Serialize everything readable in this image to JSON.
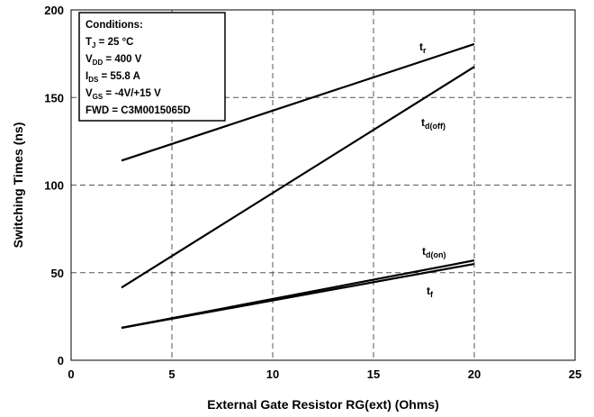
{
  "chart_data": {
    "type": "line",
    "xlabel": "External Gate Resistor RG(ext) (Ohms)",
    "ylabel": "Switching Times (ns)",
    "xlim": [
      0,
      25
    ],
    "ylim": [
      0,
      200
    ],
    "xticks": [
      0,
      5,
      10,
      15,
      20,
      25
    ],
    "yticks": [
      0,
      50,
      100,
      150,
      200
    ],
    "grid": true,
    "series": [
      {
        "name": "tr",
        "label_main": "t",
        "label_sub": "r",
        "x": [
          2.5,
          20
        ],
        "y": [
          114,
          180.5
        ]
      },
      {
        "name": "td(off)",
        "label_main": "t",
        "label_sub": "d(off)",
        "x": [
          2.5,
          20
        ],
        "y": [
          41.5,
          167.5
        ]
      },
      {
        "name": "td(on)",
        "label_main": "t",
        "label_sub": "d(on)",
        "x": [
          2.5,
          20
        ],
        "y": [
          18.5,
          57
        ]
      },
      {
        "name": "tf",
        "label_main": "t",
        "label_sub": "f",
        "x": [
          2.5,
          20
        ],
        "y": [
          18.5,
          55
        ]
      }
    ],
    "annotations": {
      "conditions": [
        {
          "main": "Conditions:",
          "sub": "",
          "rest": ""
        },
        {
          "main": "T",
          "sub": "J",
          "rest": " = 25 °C"
        },
        {
          "main": "V",
          "sub": "DD",
          "rest": " = 400 V"
        },
        {
          "main": "I",
          "sub": "DS",
          "rest": " = 55.8 A"
        },
        {
          "main": "V",
          "sub": "GS",
          "rest": " = -4V/+15 V"
        },
        {
          "main": "FWD = C3M0015065D",
          "sub": "",
          "rest": ""
        }
      ]
    }
  }
}
